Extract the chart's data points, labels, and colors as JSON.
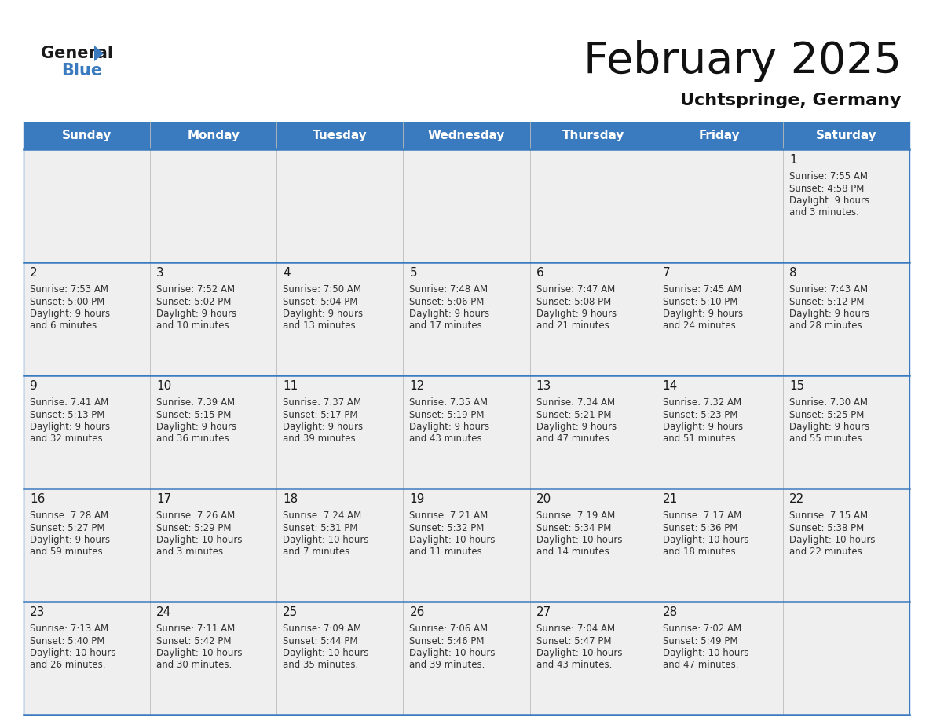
{
  "title": "February 2025",
  "subtitle": "Uchtspringe, Germany",
  "header_bg": "#3a7abf",
  "header_text": "#ffffff",
  "day_names": [
    "Sunday",
    "Monday",
    "Tuesday",
    "Wednesday",
    "Thursday",
    "Friday",
    "Saturday"
  ],
  "cell_bg": "#efefef",
  "date_color": "#1a1a1a",
  "text_color": "#333333",
  "line_color": "#3a7abf",
  "calendar_data": [
    [
      null,
      null,
      null,
      null,
      null,
      null,
      {
        "day": 1,
        "sunrise": "7:55 AM",
        "sunset": "4:58 PM",
        "daylight": "9 hours\nand 3 minutes."
      }
    ],
    [
      {
        "day": 2,
        "sunrise": "7:53 AM",
        "sunset": "5:00 PM",
        "daylight": "9 hours\nand 6 minutes."
      },
      {
        "day": 3,
        "sunrise": "7:52 AM",
        "sunset": "5:02 PM",
        "daylight": "9 hours\nand 10 minutes."
      },
      {
        "day": 4,
        "sunrise": "7:50 AM",
        "sunset": "5:04 PM",
        "daylight": "9 hours\nand 13 minutes."
      },
      {
        "day": 5,
        "sunrise": "7:48 AM",
        "sunset": "5:06 PM",
        "daylight": "9 hours\nand 17 minutes."
      },
      {
        "day": 6,
        "sunrise": "7:47 AM",
        "sunset": "5:08 PM",
        "daylight": "9 hours\nand 21 minutes."
      },
      {
        "day": 7,
        "sunrise": "7:45 AM",
        "sunset": "5:10 PM",
        "daylight": "9 hours\nand 24 minutes."
      },
      {
        "day": 8,
        "sunrise": "7:43 AM",
        "sunset": "5:12 PM",
        "daylight": "9 hours\nand 28 minutes."
      }
    ],
    [
      {
        "day": 9,
        "sunrise": "7:41 AM",
        "sunset": "5:13 PM",
        "daylight": "9 hours\nand 32 minutes."
      },
      {
        "day": 10,
        "sunrise": "7:39 AM",
        "sunset": "5:15 PM",
        "daylight": "9 hours\nand 36 minutes."
      },
      {
        "day": 11,
        "sunrise": "7:37 AM",
        "sunset": "5:17 PM",
        "daylight": "9 hours\nand 39 minutes."
      },
      {
        "day": 12,
        "sunrise": "7:35 AM",
        "sunset": "5:19 PM",
        "daylight": "9 hours\nand 43 minutes."
      },
      {
        "day": 13,
        "sunrise": "7:34 AM",
        "sunset": "5:21 PM",
        "daylight": "9 hours\nand 47 minutes."
      },
      {
        "day": 14,
        "sunrise": "7:32 AM",
        "sunset": "5:23 PM",
        "daylight": "9 hours\nand 51 minutes."
      },
      {
        "day": 15,
        "sunrise": "7:30 AM",
        "sunset": "5:25 PM",
        "daylight": "9 hours\nand 55 minutes."
      }
    ],
    [
      {
        "day": 16,
        "sunrise": "7:28 AM",
        "sunset": "5:27 PM",
        "daylight": "9 hours\nand 59 minutes."
      },
      {
        "day": 17,
        "sunrise": "7:26 AM",
        "sunset": "5:29 PM",
        "daylight": "10 hours\nand 3 minutes."
      },
      {
        "day": 18,
        "sunrise": "7:24 AM",
        "sunset": "5:31 PM",
        "daylight": "10 hours\nand 7 minutes."
      },
      {
        "day": 19,
        "sunrise": "7:21 AM",
        "sunset": "5:32 PM",
        "daylight": "10 hours\nand 11 minutes."
      },
      {
        "day": 20,
        "sunrise": "7:19 AM",
        "sunset": "5:34 PM",
        "daylight": "10 hours\nand 14 minutes."
      },
      {
        "day": 21,
        "sunrise": "7:17 AM",
        "sunset": "5:36 PM",
        "daylight": "10 hours\nand 18 minutes."
      },
      {
        "day": 22,
        "sunrise": "7:15 AM",
        "sunset": "5:38 PM",
        "daylight": "10 hours\nand 22 minutes."
      }
    ],
    [
      {
        "day": 23,
        "sunrise": "7:13 AM",
        "sunset": "5:40 PM",
        "daylight": "10 hours\nand 26 minutes."
      },
      {
        "day": 24,
        "sunrise": "7:11 AM",
        "sunset": "5:42 PM",
        "daylight": "10 hours\nand 30 minutes."
      },
      {
        "day": 25,
        "sunrise": "7:09 AM",
        "sunset": "5:44 PM",
        "daylight": "10 hours\nand 35 minutes."
      },
      {
        "day": 26,
        "sunrise": "7:06 AM",
        "sunset": "5:46 PM",
        "daylight": "10 hours\nand 39 minutes."
      },
      {
        "day": 27,
        "sunrise": "7:04 AM",
        "sunset": "5:47 PM",
        "daylight": "10 hours\nand 43 minutes."
      },
      {
        "day": 28,
        "sunrise": "7:02 AM",
        "sunset": "5:49 PM",
        "daylight": "10 hours\nand 47 minutes."
      },
      null
    ]
  ]
}
